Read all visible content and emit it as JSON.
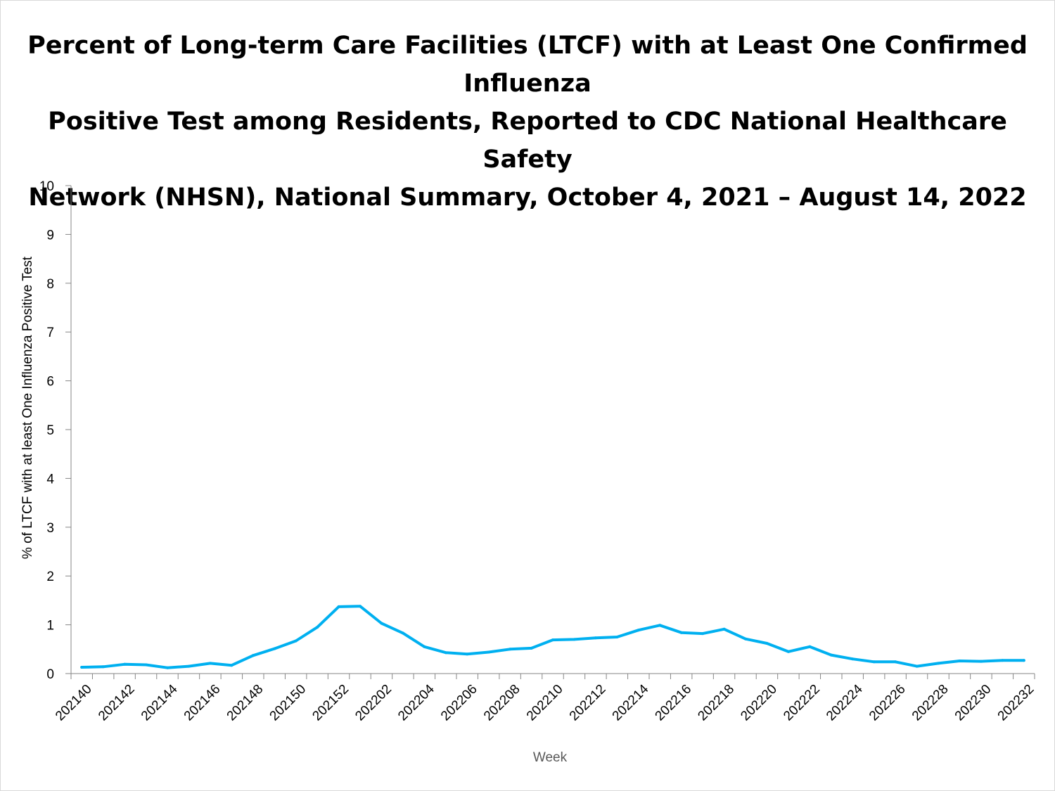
{
  "chart_data": {
    "type": "line",
    "title_lines": [
      "Percent of Long-term Care Facilities (LTCF) with at Least One Confirmed Influenza",
      "Positive Test among Residents, Reported to CDC National Healthcare Safety",
      "Network (NHSN), National Summary, October 4, 2021 – August 14, 2022"
    ],
    "xlabel": "Week",
    "ylabel": "% of LTCF with at least One Influenza Positive Test",
    "ylim": [
      0,
      10
    ],
    "yticks": [
      "0",
      "1",
      "2",
      "3",
      "4",
      "5",
      "6",
      "7",
      "8",
      "9",
      "10"
    ],
    "xtick_labels": [
      "202140",
      "202142",
      "202144",
      "202146",
      "202148",
      "202150",
      "202152",
      "202202",
      "202204",
      "202206",
      "202208",
      "202210",
      "202212",
      "202214",
      "202216",
      "202218",
      "202220",
      "202222",
      "202224",
      "202226",
      "202228",
      "202230",
      "202232"
    ],
    "line_color": "#00B0F0",
    "series": [
      {
        "name": "% of LTCF with at least One Influenza Positive Test",
        "x": [
          "202140",
          "202141",
          "202142",
          "202143",
          "202144",
          "202145",
          "202146",
          "202147",
          "202148",
          "202149",
          "202150",
          "202151",
          "202152",
          "202201",
          "202202",
          "202203",
          "202204",
          "202205",
          "202206",
          "202207",
          "202208",
          "202209",
          "202210",
          "202211",
          "202212",
          "202213",
          "202214",
          "202215",
          "202216",
          "202217",
          "202218",
          "202219",
          "202220",
          "202221",
          "202222",
          "202223",
          "202224",
          "202225",
          "202226",
          "202227",
          "202228",
          "202229",
          "202230",
          "202231",
          "202232"
        ],
        "values": [
          0.13,
          0.14,
          0.19,
          0.18,
          0.12,
          0.15,
          0.21,
          0.17,
          0.37,
          0.51,
          0.67,
          0.95,
          1.37,
          1.38,
          1.03,
          0.83,
          0.55,
          0.43,
          0.4,
          0.44,
          0.5,
          0.52,
          0.69,
          0.7,
          0.73,
          0.75,
          0.89,
          0.99,
          0.84,
          0.82,
          0.91,
          0.71,
          0.62,
          0.45,
          0.55,
          0.38,
          0.3,
          0.24,
          0.24,
          0.15,
          0.21,
          0.26,
          0.25,
          0.27,
          0.27
        ]
      }
    ]
  }
}
